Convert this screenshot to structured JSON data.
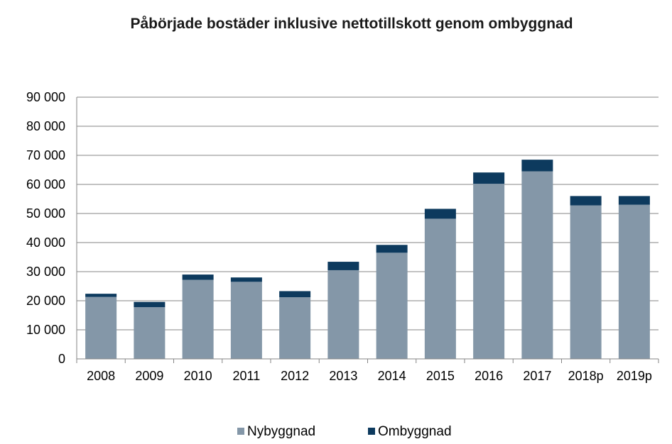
{
  "chart_data": {
    "type": "bar",
    "stacked": true,
    "title": "Påbörjade bostäder inklusive nettotillskott genom ombyggnad",
    "xlabel": "",
    "ylabel": "",
    "categories": [
      "2008",
      "2009",
      "2010",
      "2011",
      "2012",
      "2013",
      "2014",
      "2015",
      "2016",
      "2017",
      "2018p",
      "2019p"
    ],
    "series": [
      {
        "name": "Nybyggnad",
        "color": "#8497a8",
        "values": [
          21300,
          17800,
          27200,
          26500,
          21200,
          30500,
          36500,
          48200,
          60200,
          64500,
          52800,
          53000
        ]
      },
      {
        "name": "Ombyggnad",
        "color": "#0d3a5e",
        "values": [
          1100,
          1800,
          1800,
          1500,
          2100,
          2900,
          2700,
          3400,
          3900,
          4000,
          3200,
          3000
        ]
      }
    ],
    "ylim": [
      0,
      90000
    ],
    "yticks": [
      "0",
      "10 000",
      "20 000",
      "30 000",
      "40 000",
      "50 000",
      "60 000",
      "70 000",
      "80 000",
      "90 000"
    ],
    "grid": true,
    "legend_position": "bottom"
  }
}
